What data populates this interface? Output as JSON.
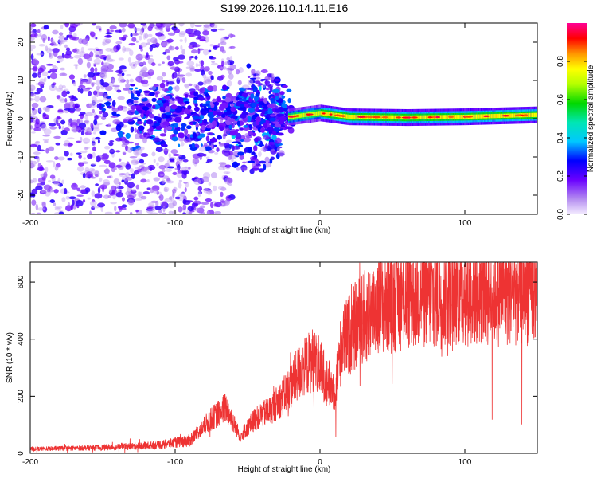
{
  "title": "S199.2026.110.14.11.E16",
  "chart_data": [
    {
      "type": "heatmap",
      "xlabel": "Height of straight line (km)",
      "ylabel": "Frequency (Hz)",
      "xlim": [
        -200,
        150
      ],
      "ylim": [
        -25,
        25
      ],
      "xticks": [
        -200,
        -100,
        0,
        100
      ],
      "xtick_labels": [
        "-200",
        "-100",
        "0",
        "100"
      ],
      "yticks": [
        -20,
        -10,
        0,
        10,
        20
      ],
      "ytick_labels": [
        "-20",
        "-10",
        "0",
        "10",
        "20"
      ],
      "colorbar": {
        "label": "Normalized spectral amplitude",
        "range": [
          0,
          1
        ],
        "ticks": [
          0,
          0.2,
          0.4,
          0.6,
          0.8
        ],
        "tick_labels": [
          "0.0",
          "0.2",
          "0.4",
          "0.6",
          "0.8"
        ]
      },
      "ridge": {
        "description_x": [
          -20,
          0,
          20,
          60,
          100,
          150
        ],
        "freq_hz": [
          0.5,
          1.5,
          0.5,
          0.3,
          0.5,
          1.0
        ]
      }
    },
    {
      "type": "line",
      "xlabel": "Height of straight line (km)",
      "ylabel": "SNR (10 * v/v)",
      "xlim": [
        -200,
        150
      ],
      "ylim": [
        0,
        670
      ],
      "xticks": [
        -200,
        -100,
        0,
        100
      ],
      "xtick_labels": [
        "-200",
        "-100",
        "0",
        "100"
      ],
      "yticks": [
        0,
        200,
        400,
        600
      ],
      "ytick_labels": [
        "0",
        "200",
        "400",
        "600"
      ],
      "series_color": "#ee3333",
      "envelope_x": [
        -200,
        -150,
        -110,
        -90,
        -75,
        -65,
        -55,
        -45,
        -35,
        -25,
        -15,
        -5,
        0,
        5,
        10,
        15,
        25,
        40,
        60,
        80,
        100,
        120,
        150
      ],
      "envelope_y": [
        15,
        20,
        30,
        45,
        120,
        160,
        60,
        120,
        150,
        200,
        280,
        330,
        300,
        250,
        220,
        380,
        450,
        520,
        550,
        560,
        570,
        570,
        580
      ]
    }
  ]
}
